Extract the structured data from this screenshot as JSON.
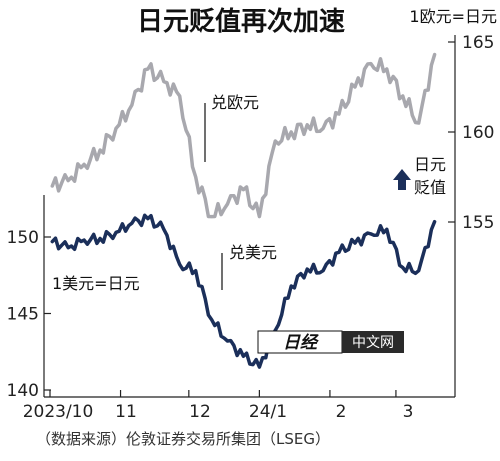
{
  "chart_data": {
    "type": "line",
    "title": "日元贬值再次加速",
    "x": [
      "2023-10-02",
      "2023-10-09",
      "2023-10-16",
      "2023-10-23",
      "2023-10-30",
      "2023-11-06",
      "2023-11-13",
      "2023-11-20",
      "2023-11-27",
      "2023-12-04",
      "2023-12-11",
      "2023-12-18",
      "2023-12-25",
      "2024-01-01",
      "2024-01-08",
      "2024-01-15",
      "2024-01-22",
      "2024-01-29",
      "2024-02-05",
      "2024-02-12",
      "2024-02-19",
      "2024-02-26",
      "2024-03-04",
      "2024-03-11",
      "2024-03-18"
    ],
    "x_ticks": [
      "2023/10",
      "11",
      "12",
      "24/1",
      "2",
      "3"
    ],
    "series": [
      {
        "name": "兑美元",
        "axis": "left",
        "label_unit": "1美元=日元",
        "color": "#1b2f5a",
        "values": [
          149.7,
          149.3,
          149.8,
          149.9,
          150.3,
          150.9,
          151.2,
          150.5,
          148.2,
          147.8,
          144.6,
          143.2,
          142.2,
          141.5,
          143.9,
          146.8,
          147.9,
          147.8,
          149.0,
          149.6,
          150.2,
          150.5,
          148.0,
          147.8,
          151.0
        ]
      },
      {
        "name": "兑欧元",
        "axis": "right",
        "label_unit": "1欧元=日元",
        "color": "#a8a8ae",
        "values": [
          157.0,
          157.3,
          158.2,
          159.0,
          160.2,
          161.5,
          163.5,
          162.8,
          162.0,
          157.5,
          155.3,
          156.0,
          156.8,
          155.3,
          159.5,
          160.0,
          160.4,
          160.2,
          161.0,
          162.5,
          163.8,
          163.5,
          162.0,
          160.5,
          164.3
        ]
      }
    ],
    "y_left": {
      "ticks": [
        140,
        145,
        150
      ],
      "ylim": [
        140,
        152.5
      ]
    },
    "y_right": {
      "ticks": [
        155,
        160,
        165
      ],
      "ylim": [
        152.8,
        165
      ]
    },
    "annotation": {
      "arrow_label_1": "日元",
      "arrow_label_2": "贬值"
    },
    "source": "（数据来源）伦敦证券交易所集团（LSEG）",
    "watermark": {
      "text": "中文网",
      "logo": "日经"
    }
  }
}
